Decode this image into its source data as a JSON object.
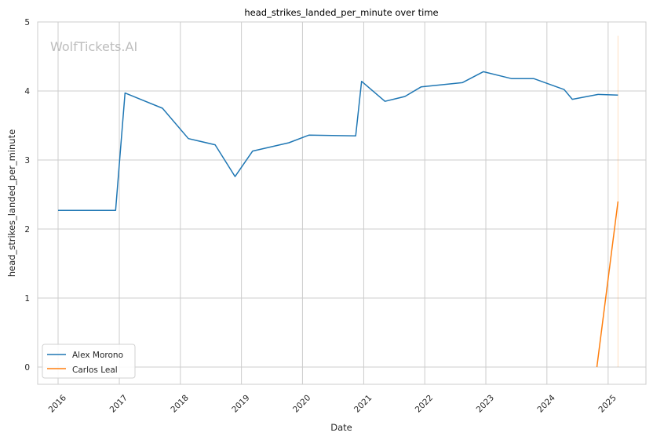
{
  "chart_data": {
    "type": "line",
    "title": "head_strikes_landed_per_minute over time",
    "xlabel": "Date",
    "ylabel": "head_strikes_landed_per_minute",
    "watermark": "WolfTickets.AI",
    "x_tick_labels": [
      "2016",
      "2017",
      "2018",
      "2019",
      "2020",
      "2021",
      "2022",
      "2023",
      "2024",
      "2025"
    ],
    "y_tick_labels": [
      "0",
      "1",
      "2",
      "3",
      "4",
      "5"
    ],
    "ylim": [
      -0.25,
      5.0
    ],
    "xlim": [
      "2015-09-01",
      "2025-08-15"
    ],
    "grid": true,
    "legend_position": "lower-left",
    "series": [
      {
        "name": "Alex Morono",
        "color": "#1f77b4",
        "points": [
          {
            "x": "2016-01-01",
            "y": 2.27
          },
          {
            "x": "2016-12-10",
            "y": 2.27
          },
          {
            "x": "2017-02-04",
            "y": 3.97
          },
          {
            "x": "2017-09-16",
            "y": 3.75
          },
          {
            "x": "2018-02-18",
            "y": 3.31
          },
          {
            "x": "2018-07-28",
            "y": 3.22
          },
          {
            "x": "2018-11-24",
            "y": 2.76
          },
          {
            "x": "2019-03-09",
            "y": 3.13
          },
          {
            "x": "2019-10-12",
            "y": 3.25
          },
          {
            "x": "2020-02-08",
            "y": 3.36
          },
          {
            "x": "2020-11-14",
            "y": 3.35
          },
          {
            "x": "2020-12-19",
            "y": 4.14
          },
          {
            "x": "2021-05-08",
            "y": 3.85
          },
          {
            "x": "2021-09-04",
            "y": 3.92
          },
          {
            "x": "2021-12-11",
            "y": 4.06
          },
          {
            "x": "2022-08-13",
            "y": 4.12
          },
          {
            "x": "2022-12-17",
            "y": 4.28
          },
          {
            "x": "2023-06-03",
            "y": 4.18
          },
          {
            "x": "2023-10-14",
            "y": 4.18
          },
          {
            "x": "2024-04-13",
            "y": 4.02
          },
          {
            "x": "2024-06-01",
            "y": 3.88
          },
          {
            "x": "2024-11-02",
            "y": 3.95
          },
          {
            "x": "2025-03-01",
            "y": 3.94
          }
        ]
      },
      {
        "name": "Carlos Leal",
        "color": "#ff7f0e",
        "points": [
          {
            "x": "2024-10-26",
            "y": 0.0
          },
          {
            "x": "2025-03-01",
            "y": 2.4
          }
        ]
      }
    ],
    "annotations": [
      {
        "type": "vline",
        "x": "2025-03-01",
        "y_from": 0.0,
        "y_to": 4.8,
        "color": "#ff7f0e"
      }
    ]
  }
}
